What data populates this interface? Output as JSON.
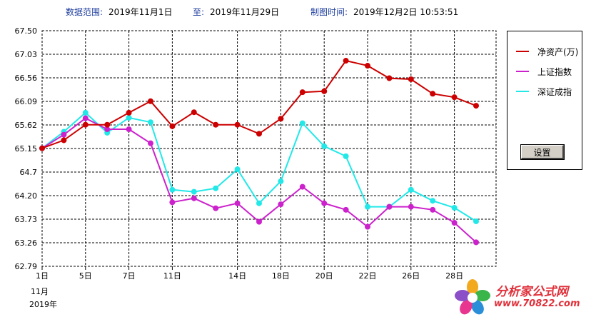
{
  "header": {
    "range_label": "数据范围:",
    "range_start": "2019年11月1日",
    "to_label": "至:",
    "range_end": "2019年11月29日",
    "made_label": "制图时间:",
    "made_time": "2019年12月2日 10:53:51"
  },
  "legend": {
    "items": [
      {
        "label": "净资产(万)",
        "color": "#cc0000"
      },
      {
        "label": "上证指数",
        "color": "#cc22cc"
      },
      {
        "label": "深证成指",
        "color": "#22e8e8"
      }
    ],
    "settings_button": "设置"
  },
  "x_axis": {
    "month_label": "11月",
    "year_label": "2019年"
  },
  "watermark": {
    "title": "分析家公式网",
    "url": "www.70822.com",
    "icon": "flower-logo-icon"
  },
  "chart_data": {
    "type": "line",
    "title": "",
    "xlabel": "",
    "ylabel": "",
    "x": [
      "1日",
      "4日",
      "5日",
      "6日",
      "7日",
      "8日",
      "11日",
      "12日",
      "13日",
      "14日",
      "15日",
      "18日",
      "19日",
      "20日",
      "21日",
      "22日",
      "25日",
      "26日",
      "27日",
      "28日",
      "29日"
    ],
    "x_tick_labels": [
      "1日",
      "5日",
      "7日",
      "11日",
      "14日",
      "18日",
      "20日",
      "22日",
      "26日",
      "28日"
    ],
    "x_tick_positions": [
      0,
      2,
      4,
      6,
      9,
      11,
      13,
      15,
      17,
      19
    ],
    "y_ticks": [
      "67.50",
      "67.03",
      "66.56",
      "66.09",
      "65.62",
      "65.15",
      "64.7",
      "64.20",
      "63.73",
      "63.26",
      "62.79"
    ],
    "ylim": [
      62.79,
      67.5
    ],
    "grid": true,
    "legend_position": "right",
    "series": [
      {
        "name": "净资产(万)",
        "color": "#cc0000",
        "values": [
          65.15,
          65.31,
          65.62,
          65.62,
          65.86,
          66.09,
          65.59,
          65.87,
          65.62,
          65.62,
          65.44,
          65.74,
          66.27,
          66.29,
          66.9,
          66.8,
          66.55,
          66.53,
          66.24,
          66.17,
          66.0
        ]
      },
      {
        "name": "上证指数",
        "color": "#cc22cc",
        "values": [
          65.15,
          65.42,
          65.75,
          65.53,
          65.53,
          65.25,
          64.07,
          64.15,
          63.95,
          64.05,
          63.68,
          64.03,
          64.38,
          64.05,
          63.92,
          63.58,
          63.98,
          63.98,
          63.92,
          63.66,
          63.27
        ]
      },
      {
        "name": "深证成指",
        "color": "#22e8e8",
        "values": [
          65.15,
          65.48,
          65.86,
          65.46,
          65.76,
          65.67,
          64.32,
          64.28,
          64.35,
          64.73,
          64.05,
          64.49,
          65.65,
          65.19,
          64.99,
          63.98,
          63.98,
          64.32,
          64.1,
          63.96,
          63.69
        ]
      }
    ]
  }
}
